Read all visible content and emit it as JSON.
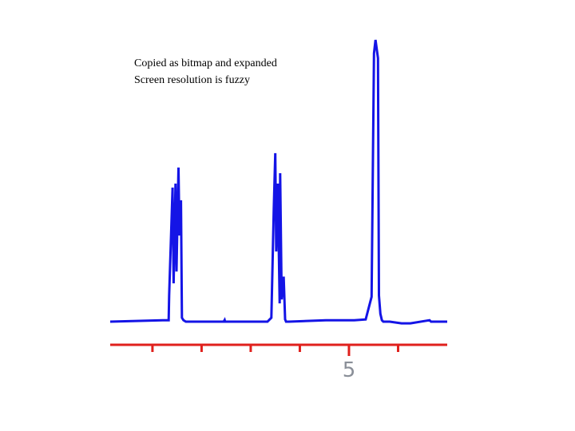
{
  "chart_data": {
    "type": "line",
    "annotations": [
      "Copied as bitmap and expanded",
      "Screen resolution is fuzzy"
    ],
    "x": [
      9.86,
      8.79,
      8.67,
      8.66,
      8.59,
      8.57,
      8.53,
      8.51,
      8.47,
      8.45,
      8.42,
      8.4,
      8.37,
      8.32,
      7.55,
      7.53,
      7.52,
      6.66,
      6.58,
      6.53,
      6.5,
      6.48,
      6.45,
      6.41,
      6.4,
      6.37,
      6.33,
      6.3,
      6.28,
      6.22,
      5.47,
      5.29,
      5.08,
      4.89,
      4.66,
      4.54,
      4.51,
      4.49,
      4.46,
      4.41,
      4.39,
      4.36,
      4.33,
      4.3,
      4.17,
      3.93,
      3.75,
      3.36,
      3.33,
      3.0
    ],
    "values": [
      0,
      0.5,
      0.5,
      9.3,
      47.6,
      13.6,
      49,
      17.8,
      54.7,
      30.6,
      43.1,
      1.4,
      0.5,
      0,
      0,
      0.6,
      0,
      0,
      1.4,
      39.9,
      59.8,
      24.9,
      49,
      6.5,
      52.7,
      7.9,
      16,
      0.8,
      0,
      0,
      0.5,
      0.5,
      0.5,
      0.5,
      0.8,
      8.8,
      61.2,
      95.2,
      100,
      93.5,
      9.3,
      2.8,
      0.5,
      0,
      0,
      -0.6,
      -0.6,
      0.5,
      0,
      0
    ],
    "color": "#1414e6",
    "axis_color": "#e0201c",
    "xlim": [
      9.86,
      3.0
    ],
    "ylim": [
      0,
      100
    ],
    "xticks": [
      5
    ],
    "minor_xticks": [
      9,
      8,
      7,
      6,
      4
    ]
  }
}
